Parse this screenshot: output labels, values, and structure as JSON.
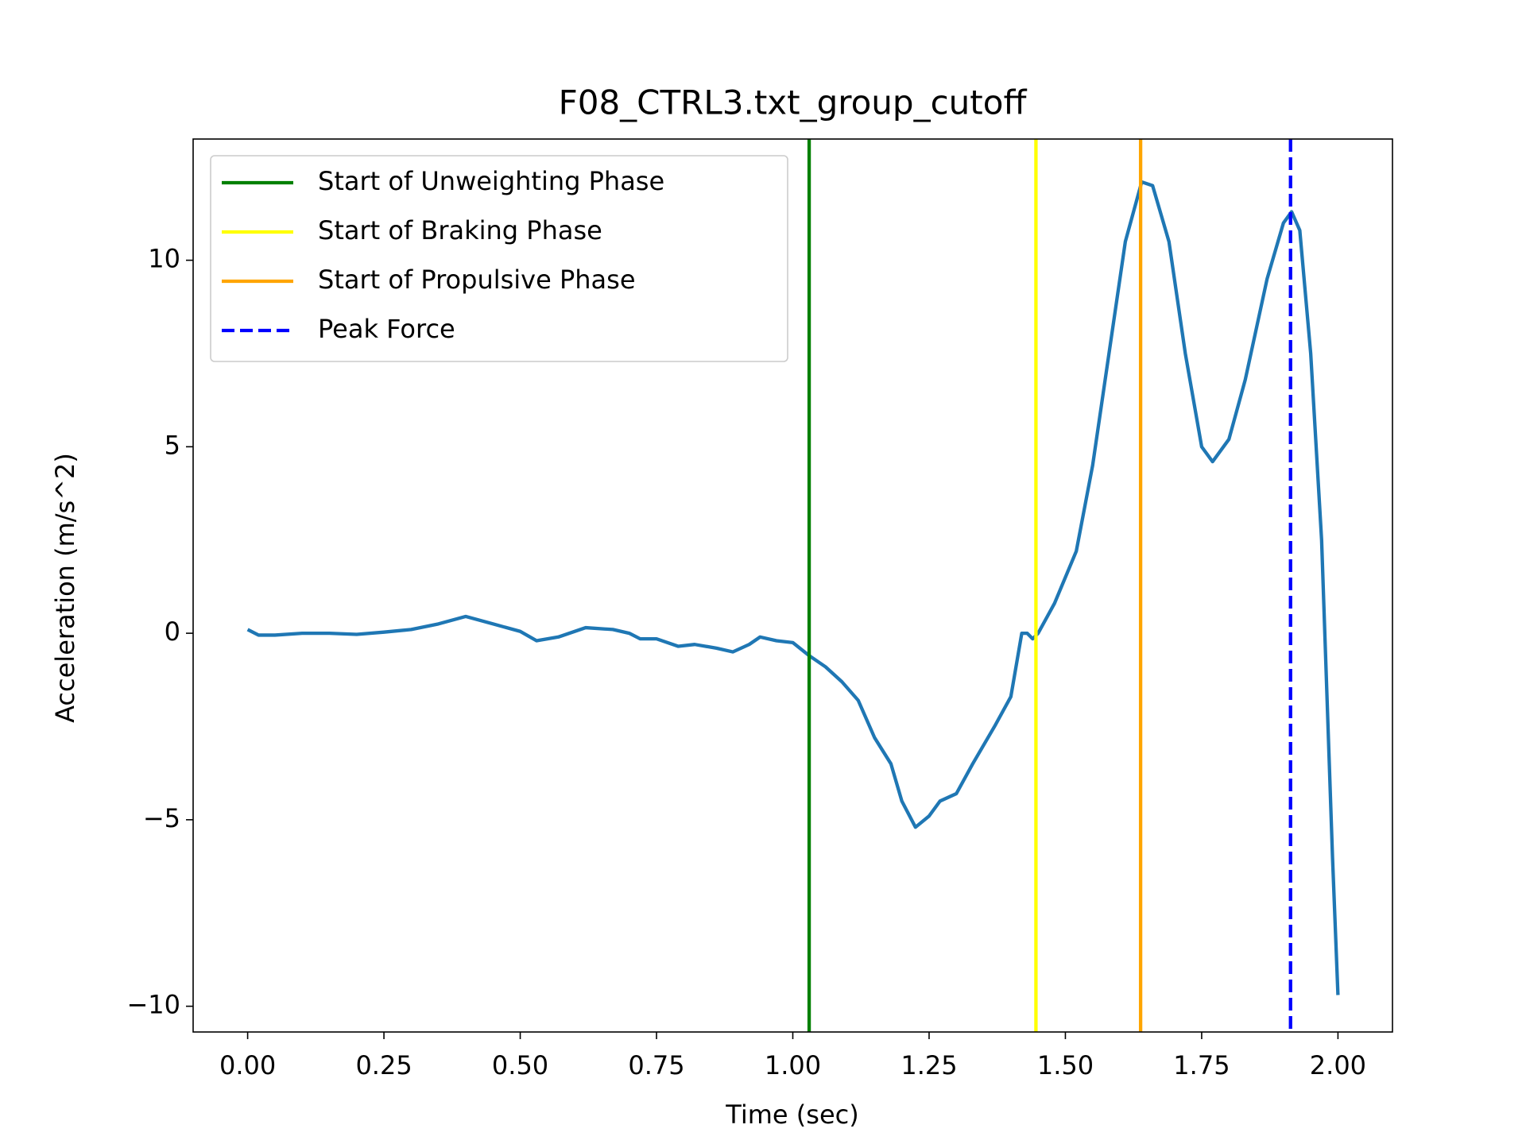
{
  "chart_data": {
    "type": "line",
    "title": "F08_CTRL3.txt_group_cutoff",
    "x_label": "Time (sec)",
    "y_label": "Acceleration (m/s^2)",
    "xlim": [
      -0.1,
      2.1
    ],
    "ylim": [
      -10.69,
      13.25
    ],
    "xticks": [
      {
        "value": 0,
        "label": "0.00"
      },
      {
        "value": 0.25,
        "label": "0.25"
      },
      {
        "value": 0.5,
        "label": "0.50"
      },
      {
        "value": 0.75,
        "label": "0.75"
      },
      {
        "value": 1,
        "label": "1.00"
      },
      {
        "value": 1.25,
        "label": "1.25"
      },
      {
        "value": 1.5,
        "label": "1.50"
      },
      {
        "value": 1.75,
        "label": "1.75"
      },
      {
        "value": 2,
        "label": "2.00"
      }
    ],
    "yticks": [
      {
        "value": -10,
        "label": "−10"
      },
      {
        "value": -5,
        "label": "−5"
      },
      0,
      5,
      10
    ],
    "legend": "upper left",
    "series": [
      {
        "color": "#1f77b4",
        "x": [
          0,
          0.02,
          0.05,
          0.1,
          0.15,
          0.2,
          0.25,
          0.3,
          0.35,
          0.4,
          0.45,
          0.5,
          0.53,
          0.57,
          0.62,
          0.67,
          0.7,
          0.72,
          0.75,
          0.79,
          0.82,
          0.86,
          0.89,
          0.92,
          0.94,
          0.97,
          1.0,
          1.03,
          1.06,
          1.09,
          1.12,
          1.15,
          1.18,
          1.2,
          1.225,
          1.25,
          1.27,
          1.3,
          1.33,
          1.37,
          1.4,
          1.42,
          1.43,
          1.44,
          1.45,
          1.48,
          1.5,
          1.52,
          1.55,
          1.58,
          1.61,
          1.64,
          1.66,
          1.69,
          1.72,
          1.75,
          1.77,
          1.8,
          1.83,
          1.87,
          1.9,
          1.915,
          1.93,
          1.95,
          1.97,
          1.99,
          2.0
        ],
        "values": [
          0.1,
          -0.05,
          -0.05,
          0.0,
          0.0,
          -0.03,
          0.03,
          0.1,
          0.25,
          0.45,
          0.25,
          0.05,
          -0.2,
          -0.1,
          0.15,
          0.1,
          0.0,
          -0.15,
          -0.15,
          -0.35,
          -0.3,
          -0.4,
          -0.5,
          -0.3,
          -0.1,
          -0.2,
          -0.25,
          -0.6,
          -0.9,
          -1.3,
          -1.8,
          -2.8,
          -3.5,
          -4.5,
          -5.2,
          -4.9,
          -4.5,
          -4.3,
          -3.5,
          -2.5,
          -1.7,
          0.0,
          0.0,
          -0.15,
          0.0,
          0.8,
          1.5,
          2.2,
          4.5,
          7.5,
          10.5,
          12.1,
          12.0,
          10.5,
          7.5,
          5.0,
          4.6,
          5.2,
          6.8,
          9.5,
          11.0,
          11.3,
          10.8,
          7.5,
          2.5,
          -6.0,
          -9.7
        ]
      }
    ],
    "vlines": [
      {
        "name": "Start of Unweighting Phase",
        "color": "green",
        "x": 1.03,
        "style": "solid"
      },
      {
        "name": "Start of Braking Phase",
        "color": "yellow",
        "x": 1.446,
        "style": "solid"
      },
      {
        "name": "Start of Propulsive Phase",
        "color": "orange",
        "x": 1.638,
        "style": "solid"
      },
      {
        "name": "Peak Force",
        "color": "blue",
        "x": 1.913,
        "style": "dashed"
      }
    ]
  }
}
